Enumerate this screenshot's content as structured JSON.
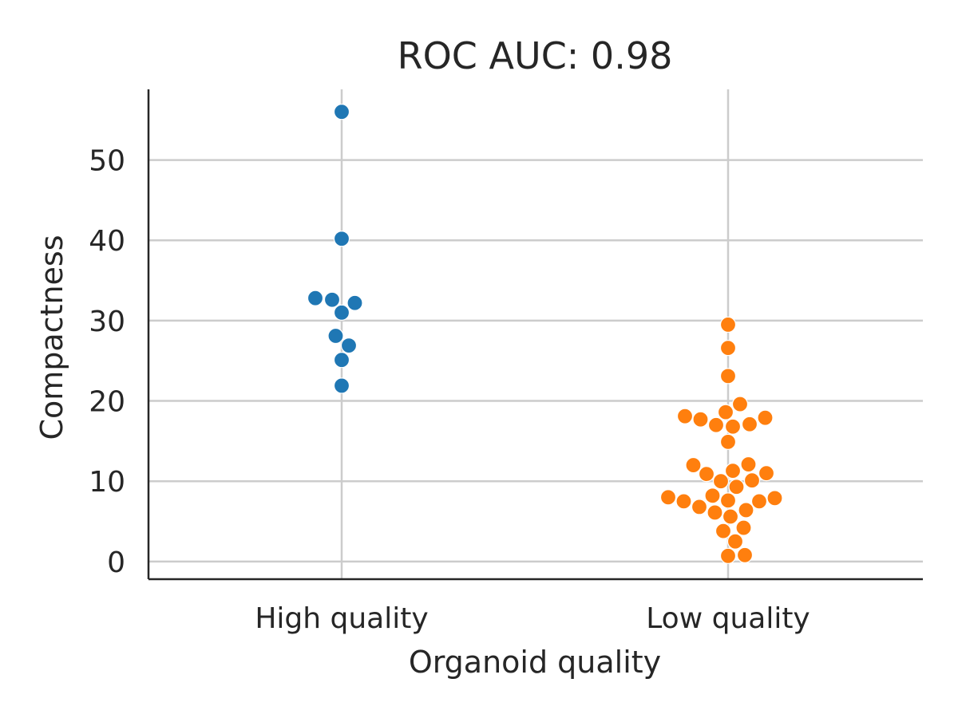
{
  "chart_data": {
    "type": "scatter",
    "subtype": "swarm",
    "title": "ROC AUC: 0.98",
    "xlabel": "Organoid quality",
    "ylabel": "Compactness",
    "categories": [
      "High quality",
      "Low quality"
    ],
    "ylim": [
      -2.2,
      58.8
    ],
    "yticks": [
      0,
      10,
      20,
      30,
      40,
      50
    ],
    "grid": true,
    "series": [
      {
        "category": "High quality",
        "color": "#1f77b4",
        "values": [
          56.0,
          40.2,
          32.8,
          32.6,
          32.2,
          31.0,
          28.1,
          26.9,
          25.1,
          21.9
        ]
      },
      {
        "category": "Low quality",
        "color": "#ff7f0e",
        "values": [
          29.5,
          26.6,
          23.1,
          19.6,
          18.6,
          18.1,
          17.9,
          17.7,
          17.1,
          17.0,
          16.8,
          14.9,
          12.1,
          12.0,
          11.3,
          11.0,
          10.9,
          10.1,
          10.0,
          9.3,
          8.2,
          8.0,
          7.9,
          7.6,
          7.5,
          7.5,
          6.8,
          6.4,
          6.1,
          5.6,
          4.2,
          3.8,
          2.5,
          0.8,
          0.7
        ]
      }
    ]
  }
}
